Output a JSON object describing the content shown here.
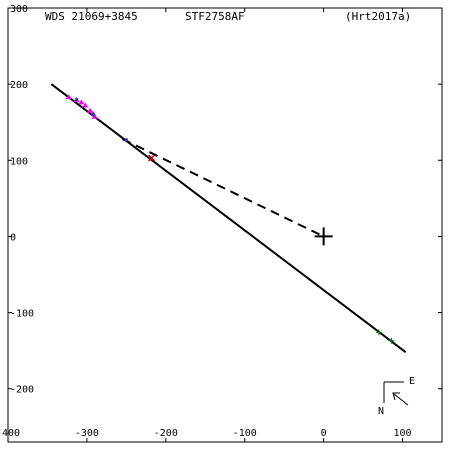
{
  "header": {
    "wds_id": "WDS 21069+3845",
    "discoverer": "STF2758AF",
    "reference": "(Hrt2017a)"
  },
  "compass": {
    "east_label": "E",
    "north_label": "N"
  },
  "chart_data": {
    "type": "scatter",
    "xlim": [
      -400,
      150
    ],
    "ylim": [
      -270,
      300
    ],
    "x_ticks": [
      -400,
      -300,
      -200,
      -100,
      0,
      100
    ],
    "y_ticks": [
      -200,
      -100,
      0,
      100,
      200,
      300
    ],
    "primary": {
      "x": 0,
      "y": 0
    },
    "orbit_line": {
      "from": [
        -345,
        200
      ],
      "to": [
        104,
        -152
      ]
    },
    "dashed_line": {
      "from": [
        -255,
        128
      ],
      "to": [
        0,
        0
      ]
    },
    "series": [
      {
        "color": "#ee00ee",
        "marker": "triangle",
        "points": [
          {
            "x": -323,
            "y": 183
          },
          {
            "x": -313,
            "y": 179
          },
          {
            "x": -307,
            "y": 176
          },
          {
            "x": -302,
            "y": 172
          },
          {
            "x": -296,
            "y": 165
          },
          {
            "x": -292,
            "y": 161
          },
          {
            "x": -290,
            "y": 157
          }
        ]
      },
      {
        "color": "#2040c0",
        "marker": "dot",
        "points": [
          {
            "x": -313,
            "y": 180
          },
          {
            "x": -292,
            "y": 160
          },
          {
            "x": -250,
            "y": 127
          }
        ]
      },
      {
        "color": "#dd0000",
        "marker": "cross",
        "points": [
          {
            "x": -218,
            "y": 103
          }
        ]
      },
      {
        "color": "#008800",
        "marker": "plus",
        "points": [
          {
            "x": 70,
            "y": -126
          },
          {
            "x": 86,
            "y": -137
          }
        ]
      }
    ]
  }
}
